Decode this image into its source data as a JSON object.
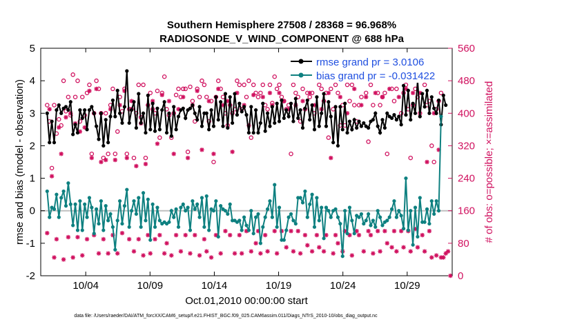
{
  "chart_data": {
    "type": "line",
    "title": "Southern Hemisphere 27508 / 28368 = 96.968%",
    "subtitle": "RADIOSONDE_V_WIND_COMPONENT @ 688 hPa",
    "xlabel": "Oct.01,2010 00:00:00 start",
    "ylabel": "rmse and bias (model - observation)",
    "y2label": "# of obs: o=possible; ×=assimilated",
    "footnote": "data file: /Users/raeder/DAI/ATM_forcXX/CAM6_setup/f.e21.FHIST_BGC.f09_025.CAM6assim.011/Diags_NTrS_2010-10/obs_diag_output.nc",
    "xlim": [
      0.5,
      32.5
    ],
    "ylim": [
      -2,
      5
    ],
    "y2lim": [
      0,
      560
    ],
    "xticks": [
      4,
      9,
      14,
      19,
      24,
      29
    ],
    "xticklabels": [
      "10/04",
      "10/09",
      "10/14",
      "10/19",
      "10/24",
      "10/29"
    ],
    "yticks": [
      "-2",
      "-1",
      "0",
      "1",
      "2",
      "3",
      "4",
      "5"
    ],
    "y2ticks": [
      "0",
      "80",
      "160",
      "240",
      "320",
      "400",
      "480",
      "560"
    ],
    "colors": {
      "rmse": "#000000",
      "bias": "#0e8080",
      "obs": "#d0115f",
      "zero": "#bfbfbf",
      "legend_text": "#1f4fe0"
    },
    "series": [
      {
        "name": "rmse grand pr = 3.0106",
        "values": [
          3.0,
          2.1,
          2.75,
          2.1,
          3.1,
          3.25,
          3.0,
          3.15,
          3.2,
          3.1,
          3.35,
          2.35,
          2.65,
          2.4,
          3.1,
          2.85,
          3.1,
          2.5,
          3.1,
          3.2,
          3.0,
          2.6,
          2.2,
          3.0,
          2.0,
          2.8,
          2.1,
          2.9,
          3.4,
          2.9,
          3.7,
          3.0,
          2.7,
          3.2,
          4.3,
          2.7,
          3.1,
          3.35,
          2.55,
          3.6,
          2.7,
          3.0,
          2.4,
          3.55,
          2.5,
          3.3,
          2.45,
          3.15,
          2.5,
          3.1,
          3.35,
          2.4,
          3.0,
          2.3,
          3.2,
          2.5,
          2.9,
          3.1,
          3.15,
          2.85,
          3.1,
          3.15,
          3.25,
          3.0,
          2.8,
          3.2,
          2.6,
          3.0,
          3.0,
          2.5,
          3.1,
          2.6,
          3.5,
          2.8,
          3.35,
          2.6,
          3.6,
          2.55,
          3.5,
          2.7,
          3.6,
          2.95,
          3.3,
          3.05,
          3.2,
          2.95,
          2.4,
          3.2,
          2.4,
          3.1,
          2.4,
          2.7,
          3.3,
          2.45,
          3.0,
          2.6,
          3.2,
          2.7,
          3.3,
          2.75,
          3.4,
          2.85,
          3.1,
          2.9,
          3.3,
          2.75,
          3.45,
          2.85,
          3.1,
          2.55,
          3.15,
          3.4,
          2.8,
          3.25,
          2.5,
          3.5,
          2.6,
          3.0,
          3.6,
          2.6,
          3.35,
          2.9,
          2.1,
          3.2,
          2.0,
          3.2,
          2.5,
          3.3,
          2.4,
          2.75,
          2.5,
          2.8,
          2.55,
          2.75,
          2.6,
          2.7,
          2.6,
          2.55,
          2.75,
          2.8,
          3.0,
          2.6,
          2.4,
          2.8,
          2.55,
          3.0,
          2.9,
          2.85,
          2.95,
          2.8,
          2.9,
          2.65,
          3.85,
          2.95,
          3.7,
          2.8,
          3.3,
          3.0,
          4.0,
          2.9,
          3.6,
          3.2,
          3.7,
          3.0,
          3.5,
          3.15,
          3.0,
          3.4,
          2.65,
          3.55,
          3.25
        ]
      },
      {
        "name": "bias grand pr = -0.031422",
        "values": [
          0.6,
          -0.2,
          0.1,
          0.05,
          0.5,
          -0.2,
          0.4,
          0.6,
          0.15,
          0.85,
          0.2,
          -0.45,
          0.2,
          -0.6,
          0.3,
          -0.6,
          0.2,
          -0.2,
          0.4,
          0.1,
          -0.7,
          0.05,
          -0.4,
          0.3,
          -0.6,
          0.15,
          -0.3,
          -0.1,
          -0.5,
          -1.2,
          -0.3,
          0.3,
          -0.4,
          0.15,
          0.65,
          -0.5,
          0.0,
          0.3,
          -0.1,
          0.4,
          -0.5,
          0.55,
          -0.3,
          0.35,
          -0.9,
          0.2,
          -0.5,
          0.1,
          -0.3,
          -0.4,
          -0.35,
          -0.4,
          -0.35,
          0.0,
          -0.2,
          0.05,
          -0.5,
          0.1,
          0.2,
          0.0,
          0.1,
          -0.6,
          0.3,
          0.05,
          0.2,
          -0.2,
          0.4,
          -0.5,
          0.45,
          -0.6,
          0.05,
          0.0,
          0.3,
          -0.8,
          0.15,
          0.05,
          0.0,
          -0.1,
          0.2,
          -0.3,
          -0.3,
          -0.35,
          -0.3,
          -0.6,
          -0.2,
          -0.45,
          -0.6,
          0.0,
          -0.7,
          -0.2,
          -0.1,
          -1.0,
          -0.5,
          -0.2,
          0.05,
          0.3,
          -0.2,
          0.8,
          -0.5,
          0.1,
          -0.9,
          -0.9,
          -0.6,
          -0.2,
          -0.1,
          -0.3,
          -0.4,
          0.4,
          0.4,
          0.25,
          0.6,
          -0.2,
          0.2,
          0.5,
          -0.5,
          0.4,
          -0.3,
          0.1,
          -0.85,
          0.1,
          0.0,
          -0.2,
          0.0,
          0.05,
          -0.2,
          -0.4,
          -1.4,
          0.0,
          -0.7,
          0.1,
          -0.3,
          -0.7,
          -0.15,
          -0.2,
          -0.1,
          -0.4,
          -0.3,
          -0.1,
          -0.45,
          -0.3,
          -0.5,
          0.0,
          -0.2,
          -0.45,
          -0.35,
          -0.3,
          -0.2,
          0.05,
          0.3,
          -0.2,
          0.0,
          -0.15,
          -0.55,
          1.0,
          -0.6,
          0.0,
          -1.05,
          0.1,
          -0.8,
          0.4,
          -0.35,
          -0.35,
          0.05,
          -0.4,
          0.3,
          -0.1,
          0.3,
          0.0,
          2.9
        ]
      }
    ],
    "obs_possible": [
      420,
      380,
      265,
      420,
      350,
      385,
      370,
      480,
      405,
      440,
      395,
      495,
      440,
      480,
      380,
      440,
      395,
      450,
      470,
      300,
      400,
      480,
      460,
      400,
      290,
      400,
      300,
      420,
      460,
      300,
      355,
      440,
      405,
      460,
      300,
      410,
      410,
      290,
      400,
      470,
      390,
      470,
      290,
      420,
      450,
      410,
      400,
      455,
      340,
      450,
      490,
      410,
      395,
      340,
      400,
      445,
      460,
      440,
      460,
      460,
      305,
      465,
      430,
      380,
      460,
      440,
      480,
      470,
      440,
      380,
      430,
      280,
      440,
      480,
      460,
      440,
      400,
      370,
      420,
      400,
      410,
      480,
      470,
      410,
      470,
      440,
      480,
      340,
      470,
      450,
      440,
      450,
      470,
      420,
      410,
      470,
      425,
      490,
      460,
      470,
      440,
      430,
      410,
      420,
      300,
      470,
      450,
      440,
      380,
      460,
      410,
      450,
      440,
      450,
      400,
      490,
      470,
      460,
      430,
      450,
      340,
      460,
      410,
      470,
      450,
      370,
      420,
      370,
      470,
      430,
      470,
      420,
      380,
      420,
      440,
      490,
      450,
      330,
      470,
      420,
      490,
      450,
      420,
      440,
      450,
      300,
      490,
      460,
      430,
      460,
      490,
      400,
      450,
      470,
      410,
      290,
      420,
      460,
      440,
      400,
      490,
      470,
      420,
      430,
      320,
      280,
      410,
      430,
      450
    ],
    "obs_assimilated": [
      105,
      410,
      245,
      45,
      90,
      365,
      300,
      40,
      390,
      95,
      400,
      45,
      375,
      95,
      355,
      50,
      365,
      90,
      455,
      290,
      100,
      460,
      55,
      280,
      90,
      285,
      55,
      410,
      100,
      285,
      55,
      420,
      105,
      455,
      290,
      90,
      430,
      60,
      270,
      90,
      375,
      50,
      275,
      100,
      55,
      430,
      90,
      325,
      100,
      445,
      55,
      80,
      430,
      50,
      300,
      100,
      410,
      60,
      440,
      100,
      290,
      55,
      420,
      100,
      455,
      50,
      310,
      90,
      60,
      430,
      45,
      300,
      100,
      460,
      55,
      420,
      110,
      430,
      100,
      305,
      55,
      450,
      100,
      55,
      420,
      110,
      370,
      60,
      445,
      80,
      110,
      55,
      440,
      100,
      60,
      450,
      420,
      110,
      55,
      450,
      110,
      430,
      70,
      410,
      110,
      60,
      420,
      110,
      55,
      430,
      100,
      75,
      450,
      60,
      420,
      100,
      70,
      410,
      60,
      100,
      450,
      290,
      55,
      100,
      80,
      440,
      60,
      110,
      400,
      100,
      50,
      460,
      110,
      100,
      420,
      60,
      440,
      110,
      100,
      55,
      450,
      110,
      60,
      440,
      110,
      80,
      460,
      70,
      110,
      60,
      440,
      110,
      70,
      460,
      110,
      60,
      450,
      115,
      70,
      450,
      100,
      60,
      280,
      110,
      45,
      400,
      50,
      310,
      45,
      45,
      55,
      60,
      0
    ]
  }
}
